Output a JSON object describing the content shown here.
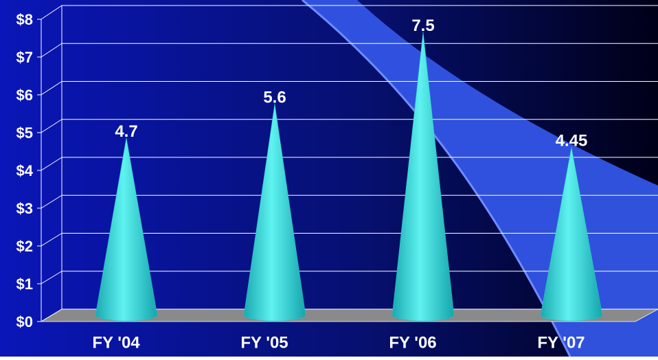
{
  "chart_data": {
    "type": "cone",
    "categories": [
      "FY '04",
      "FY '05",
      "FY '06",
      "FY '07"
    ],
    "values": [
      4.7,
      5.6,
      7.5,
      4.45
    ],
    "color": "#2fd6d6",
    "ylim": [
      0,
      8
    ],
    "yticks": [
      {
        "value": 0,
        "label": "$0"
      },
      {
        "value": 1,
        "label": "$1"
      },
      {
        "value": 2,
        "label": "$2"
      },
      {
        "value": 3,
        "label": "$3"
      },
      {
        "value": 4,
        "label": "$4"
      },
      {
        "value": 5,
        "label": "$5"
      },
      {
        "value": 6,
        "label": "$6"
      },
      {
        "value": 7,
        "label": "$7"
      },
      {
        "value": 8,
        "label": "$8"
      }
    ],
    "grid": true
  }
}
